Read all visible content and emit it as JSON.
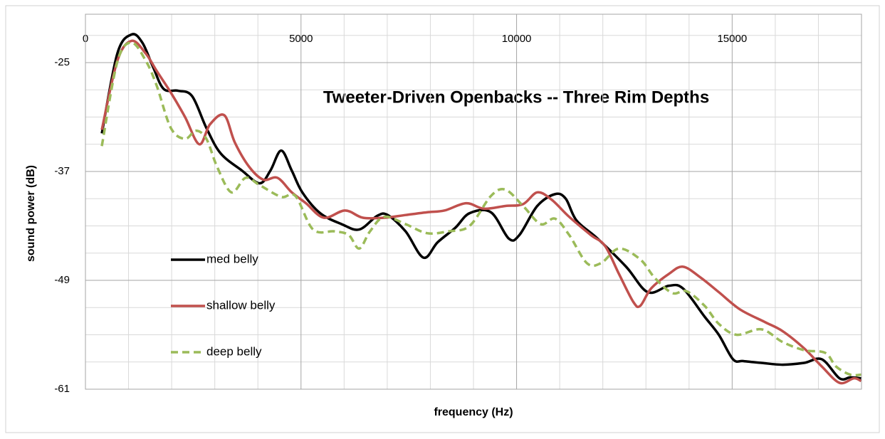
{
  "chart_data": {
    "type": "line",
    "title": "Tweeter-Driven Openbacks -- Three Rim Depths",
    "x_label": "frequency  (Hz)",
    "y_label": "sound power  (dB)",
    "xlim": [
      0,
      18000
    ],
    "xticks": [
      0,
      5000,
      10000,
      15000
    ],
    "xminorticks": [
      1000,
      2000,
      3000,
      4000,
      6000,
      7000,
      8000,
      9000,
      11000,
      12000,
      13000,
      14000,
      16000,
      17000
    ],
    "ylim": [
      -61,
      -19
    ],
    "yticks": [
      -61,
      -49,
      -37,
      -25
    ],
    "yminorticks": [
      -58,
      -55,
      -52,
      -46,
      -43,
      -40,
      -34,
      -31,
      -28,
      -22
    ],
    "grid": true,
    "series": [
      {
        "name": "med belly",
        "color": "#000000",
        "dash": false,
        "x": [
          380,
          740,
          1070,
          1320,
          1570,
          1815,
          2150,
          2475,
          2805,
          3135,
          3630,
          4040,
          4290,
          4540,
          4785,
          5030,
          5445,
          5940,
          6350,
          6765,
          7010,
          7425,
          7840,
          8170,
          8580,
          8910,
          9405,
          9820,
          10066,
          10480,
          10890,
          11140,
          11390,
          11880,
          12540,
          13040,
          13530,
          13860,
          14360,
          14690,
          15020,
          15260,
          15680,
          16170,
          16670,
          17080,
          17490,
          17740,
          17990
        ],
        "values": [
          -32.8,
          -24,
          -21.9,
          -22.8,
          -25.5,
          -27.9,
          -28.1,
          -28.7,
          -32.2,
          -35,
          -36.9,
          -38.3,
          -36.9,
          -34.7,
          -36.9,
          -39.3,
          -41.6,
          -42.8,
          -43.4,
          -41.9,
          -41.8,
          -43.6,
          -46.5,
          -44.8,
          -43.2,
          -41.6,
          -41.5,
          -44.4,
          -44,
          -40.8,
          -39.5,
          -40,
          -42.4,
          -44.4,
          -47.5,
          -50.3,
          -49.6,
          -49.9,
          -53,
          -55,
          -57.7,
          -57.9,
          -58.1,
          -58.3,
          -58.1,
          -57.7,
          -59.8,
          -59.7,
          -59.8
        ]
      },
      {
        "name": "shallow belly",
        "color": "#c0504d",
        "dash": false,
        "x": [
          380,
          740,
          1070,
          1400,
          1650,
          1980,
          2310,
          2640,
          2890,
          3220,
          3465,
          3800,
          4125,
          4455,
          4785,
          5115,
          5530,
          6020,
          6435,
          6930,
          7425,
          7920,
          8330,
          8830,
          9240,
          9740,
          10150,
          10480,
          10810,
          11220,
          11720,
          12050,
          12375,
          12710,
          12870,
          13120,
          13530,
          13860,
          14270,
          14690,
          15180,
          15760,
          16170,
          16670,
          17080,
          17490,
          17820,
          17990
        ],
        "values": [
          -32.4,
          -24.8,
          -22.6,
          -24,
          -25.9,
          -28.3,
          -31,
          -34,
          -31.8,
          -30.8,
          -33.8,
          -36.5,
          -37.9,
          -37.7,
          -39.3,
          -40.5,
          -42.1,
          -41.3,
          -42.1,
          -42.1,
          -41.8,
          -41.5,
          -41.3,
          -40.5,
          -41.1,
          -40.8,
          -40.6,
          -39.3,
          -40.1,
          -42,
          -44,
          -45.2,
          -48.3,
          -51.4,
          -51.8,
          -49.9,
          -48.3,
          -47.5,
          -48.7,
          -50.3,
          -52.2,
          -53.6,
          -54.6,
          -56.5,
          -58.5,
          -60.3,
          -59.8,
          -60.1
        ]
      },
      {
        "name": "deep belly",
        "color": "#9bbb59",
        "dash": true,
        "x": [
          380,
          740,
          1070,
          1400,
          1650,
          1980,
          2310,
          2560,
          2805,
          3055,
          3385,
          3715,
          4040,
          4540,
          4870,
          5280,
          5775,
          6105,
          6350,
          6600,
          6930,
          7425,
          7920,
          8415,
          8910,
          9405,
          9740,
          10150,
          10560,
          10890,
          11220,
          11630,
          11960,
          12375,
          12870,
          13200,
          13610,
          13940,
          14360,
          14690,
          15100,
          15680,
          16170,
          16670,
          17160,
          17410,
          17740,
          17990
        ],
        "values": [
          -34.2,
          -24.9,
          -22.8,
          -24.8,
          -27.5,
          -32.2,
          -33.4,
          -32.5,
          -33.4,
          -36.5,
          -39.3,
          -37.7,
          -38.5,
          -39.8,
          -39.7,
          -43.4,
          -43.6,
          -44,
          -45.5,
          -43.6,
          -42,
          -42.8,
          -43.8,
          -43.6,
          -43,
          -39.7,
          -39,
          -40.8,
          -42.8,
          -42.2,
          -44,
          -47.1,
          -47.1,
          -45.5,
          -46.7,
          -48.7,
          -50.4,
          -50.2,
          -51.8,
          -53.8,
          -55,
          -54.4,
          -55.8,
          -56.7,
          -57,
          -58.5,
          -59.4,
          -59.4
        ]
      }
    ]
  }
}
